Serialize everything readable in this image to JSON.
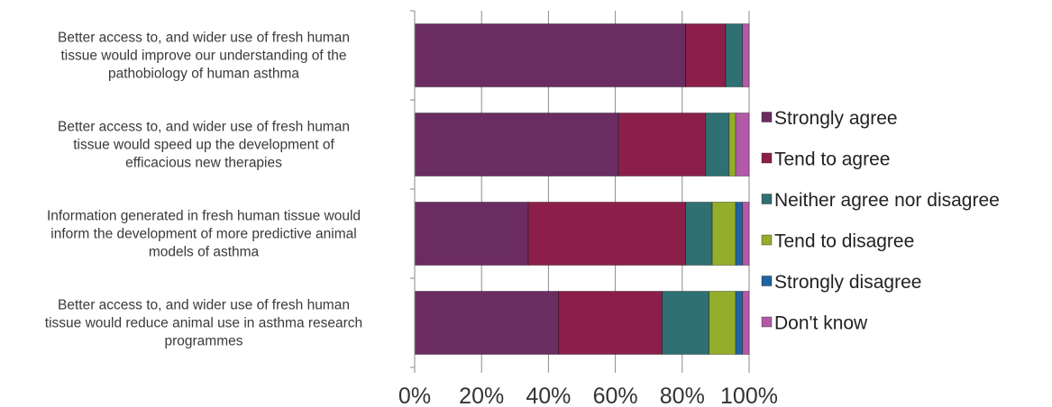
{
  "chart_data": {
    "type": "bar",
    "orientation": "horizontal",
    "stacked": "percent",
    "categories": [
      [
        "Better access to, and wider use of fresh human",
        "tissue would improve our understanding of the",
        "pathobiology of human asthma"
      ],
      [
        "Better access to, and wider use of fresh human",
        "tissue would speed up the development of",
        "efficacious new therapies"
      ],
      [
        "Information generated in fresh human tissue would",
        "inform the development of more predictive animal",
        "models of asthma"
      ],
      [
        "Better access to, and wider use of fresh human",
        "tissue would reduce animal use in asthma research",
        "programmes"
      ]
    ],
    "series": [
      {
        "name": "Strongly agree",
        "color": "#6b2c62",
        "values": [
          81,
          61,
          34,
          43
        ]
      },
      {
        "name": "Tend to agree",
        "color": "#8c1f49",
        "values": [
          12,
          26,
          47,
          31
        ]
      },
      {
        "name": "Neither agree nor disagree",
        "color": "#2f7072",
        "values": [
          5,
          7,
          8,
          14
        ]
      },
      {
        "name": "Tend to disagree",
        "color": "#94ad2a",
        "values": [
          0,
          2,
          7,
          8
        ]
      },
      {
        "name": "Strongly disagree",
        "color": "#1e64a0",
        "values": [
          0,
          0,
          2,
          2
        ]
      },
      {
        "name": "Don't know",
        "color": "#b25aa8",
        "values": [
          2,
          4,
          2,
          2
        ]
      }
    ],
    "xlim": [
      0,
      100
    ],
    "xticks": [
      "0%",
      "20%",
      "40%",
      "60%",
      "80%",
      "100%"
    ],
    "grid": "vertical",
    "legend": "right",
    "title": "",
    "xlabel": "",
    "ylabel": ""
  }
}
